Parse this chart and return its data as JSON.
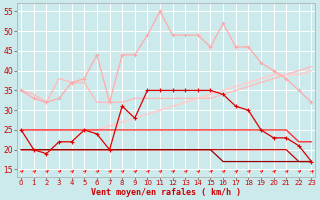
{
  "x": [
    0,
    1,
    2,
    3,
    4,
    5,
    6,
    7,
    8,
    9,
    10,
    11,
    12,
    13,
    14,
    15,
    16,
    17,
    18,
    19,
    20,
    21,
    22,
    23
  ],
  "line_rafales_pink": [
    35,
    33,
    32,
    33,
    37,
    38,
    44,
    32,
    44,
    44,
    49,
    55,
    49,
    49,
    49,
    46,
    52,
    46,
    46,
    42,
    40,
    38,
    35,
    32
  ],
  "line_moy_pink_upper": [
    35,
    34,
    32,
    38,
    37,
    37,
    32,
    32,
    32,
    33,
    33,
    33,
    33,
    33,
    33,
    33,
    34,
    35,
    36,
    37,
    38,
    39,
    40,
    41
  ],
  "line_moy_pink_diag": [
    25,
    25,
    25,
    25,
    25,
    25,
    25,
    26,
    27,
    28,
    29,
    30,
    31,
    32,
    33,
    34,
    35,
    36,
    37,
    38,
    39,
    39,
    39,
    40
  ],
  "line_rafales_red": [
    25,
    20,
    19,
    22,
    22,
    25,
    24,
    20,
    31,
    28,
    35,
    35,
    35,
    35,
    35,
    35,
    34,
    31,
    30,
    25,
    23,
    23,
    21,
    17
  ],
  "line_moy_red_flat": [
    25,
    25,
    25,
    25,
    25,
    25,
    25,
    25,
    25,
    25,
    25,
    25,
    25,
    25,
    25,
    25,
    25,
    25,
    25,
    25,
    25,
    25,
    22,
    22
  ],
  "line_moy_lower1": [
    20,
    20,
    20,
    20,
    20,
    20,
    20,
    20,
    20,
    20,
    20,
    20,
    20,
    20,
    20,
    20,
    20,
    20,
    20,
    20,
    20,
    20,
    17,
    17
  ],
  "line_moy_lower2": [
    20,
    20,
    20,
    20,
    20,
    20,
    20,
    20,
    20,
    20,
    20,
    20,
    20,
    20,
    20,
    20,
    17,
    17,
    17,
    17,
    17,
    17,
    17,
    17
  ],
  "bg_color": "#cceaec",
  "grid_color": "#ffffff",
  "ylabel_color": "#cc0000",
  "xlabel": "Vent moyen/en rafales ( km/h )",
  "ylim": [
    13,
    57
  ],
  "yticks": [
    15,
    20,
    25,
    30,
    35,
    40,
    45,
    50,
    55
  ],
  "xlim": [
    -0.3,
    23.3
  ]
}
